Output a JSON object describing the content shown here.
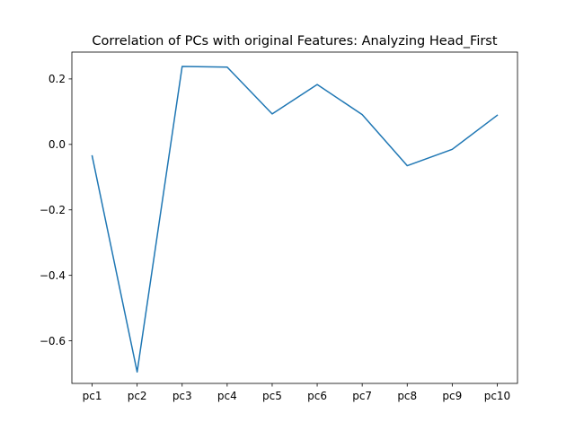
{
  "chart_data": {
    "type": "line",
    "title": "Correlation of PCs with original Features: Analyzing Head_First",
    "xlabel": "",
    "ylabel": "",
    "categories": [
      "pc1",
      "pc2",
      "pc3",
      "pc4",
      "pc5",
      "pc6",
      "pc7",
      "pc8",
      "pc9",
      "pc10"
    ],
    "series": [
      {
        "values": [
          -0.035,
          -0.695,
          0.238,
          0.236,
          0.093,
          0.183,
          0.091,
          -0.065,
          -0.015,
          0.089
        ],
        "color": "#1f77b4"
      }
    ],
    "ylim": [
      -0.73,
      0.282
    ],
    "yticks": [
      {
        "value": 0.2,
        "label": "0.2"
      },
      {
        "value": 0.0,
        "label": "0.0"
      },
      {
        "value": -0.2,
        "label": "−0.2"
      },
      {
        "value": -0.4,
        "label": "−0.4"
      },
      {
        "value": -0.6,
        "label": "−0.6"
      }
    ],
    "grid": false,
    "legend": "none"
  }
}
